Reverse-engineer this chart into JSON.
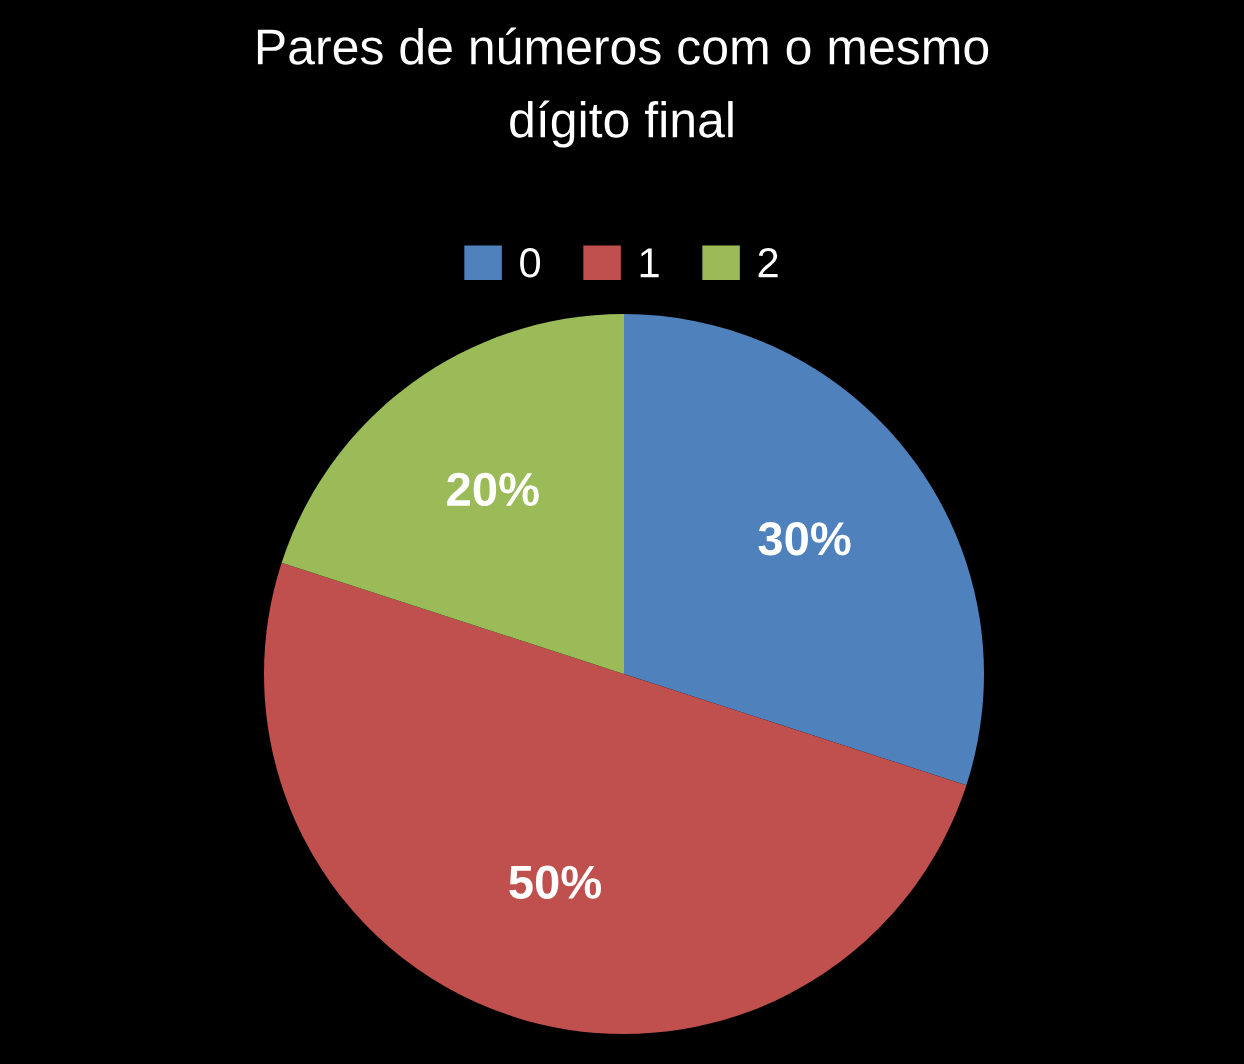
{
  "chart_data": {
    "type": "pie",
    "title": "Pares de números com o mesmo dígito final",
    "categories": [
      "0",
      "1",
      "2"
    ],
    "values": [
      30,
      50,
      20
    ],
    "colors": [
      "#4f81bd",
      "#c0504d",
      "#9bbb59"
    ],
    "value_labels": [
      "30%",
      "50%",
      "20%"
    ],
    "legend": "top"
  }
}
